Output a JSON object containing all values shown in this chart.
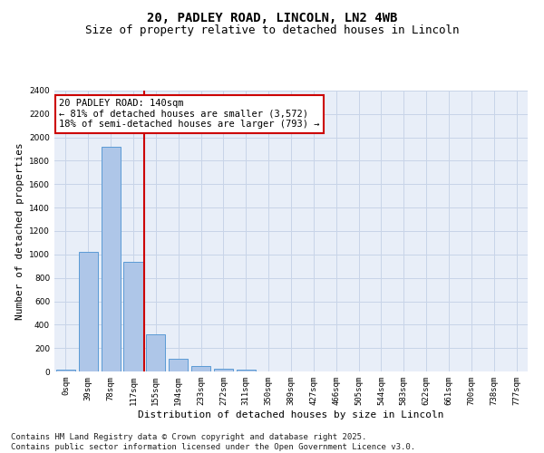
{
  "title_line1": "20, PADLEY ROAD, LINCOLN, LN2 4WB",
  "title_line2": "Size of property relative to detached houses in Lincoln",
  "xlabel": "Distribution of detached houses by size in Lincoln",
  "ylabel": "Number of detached properties",
  "bar_labels": [
    "0sqm",
    "39sqm",
    "78sqm",
    "117sqm",
    "155sqm",
    "194sqm",
    "233sqm",
    "272sqm",
    "311sqm",
    "350sqm",
    "389sqm",
    "427sqm",
    "466sqm",
    "505sqm",
    "544sqm",
    "583sqm",
    "622sqm",
    "661sqm",
    "700sqm",
    "738sqm",
    "777sqm"
  ],
  "bar_values": [
    15,
    1025,
    1920,
    935,
    315,
    110,
    45,
    25,
    12,
    3,
    0,
    0,
    0,
    0,
    0,
    0,
    0,
    0,
    0,
    0,
    0
  ],
  "bar_color": "#aec6e8",
  "bar_edge_color": "#5b9bd5",
  "vline_x": 3.5,
  "vline_color": "#cc0000",
  "annotation_text": "20 PADLEY ROAD: 140sqm\n← 81% of detached houses are smaller (3,572)\n18% of semi-detached houses are larger (793) →",
  "annotation_box_color": "#cc0000",
  "ylim": [
    0,
    2400
  ],
  "yticks": [
    0,
    200,
    400,
    600,
    800,
    1000,
    1200,
    1400,
    1600,
    1800,
    2000,
    2200,
    2400
  ],
  "grid_color": "#c8d4e8",
  "background_color": "#e8eef8",
  "footer_text": "Contains HM Land Registry data © Crown copyright and database right 2025.\nContains public sector information licensed under the Open Government Licence v3.0.",
  "title_fontsize": 10,
  "subtitle_fontsize": 9,
  "ylabel_fontsize": 8,
  "xlabel_fontsize": 8,
  "tick_fontsize": 6.5,
  "annotation_fontsize": 7.5,
  "footer_fontsize": 6.5
}
